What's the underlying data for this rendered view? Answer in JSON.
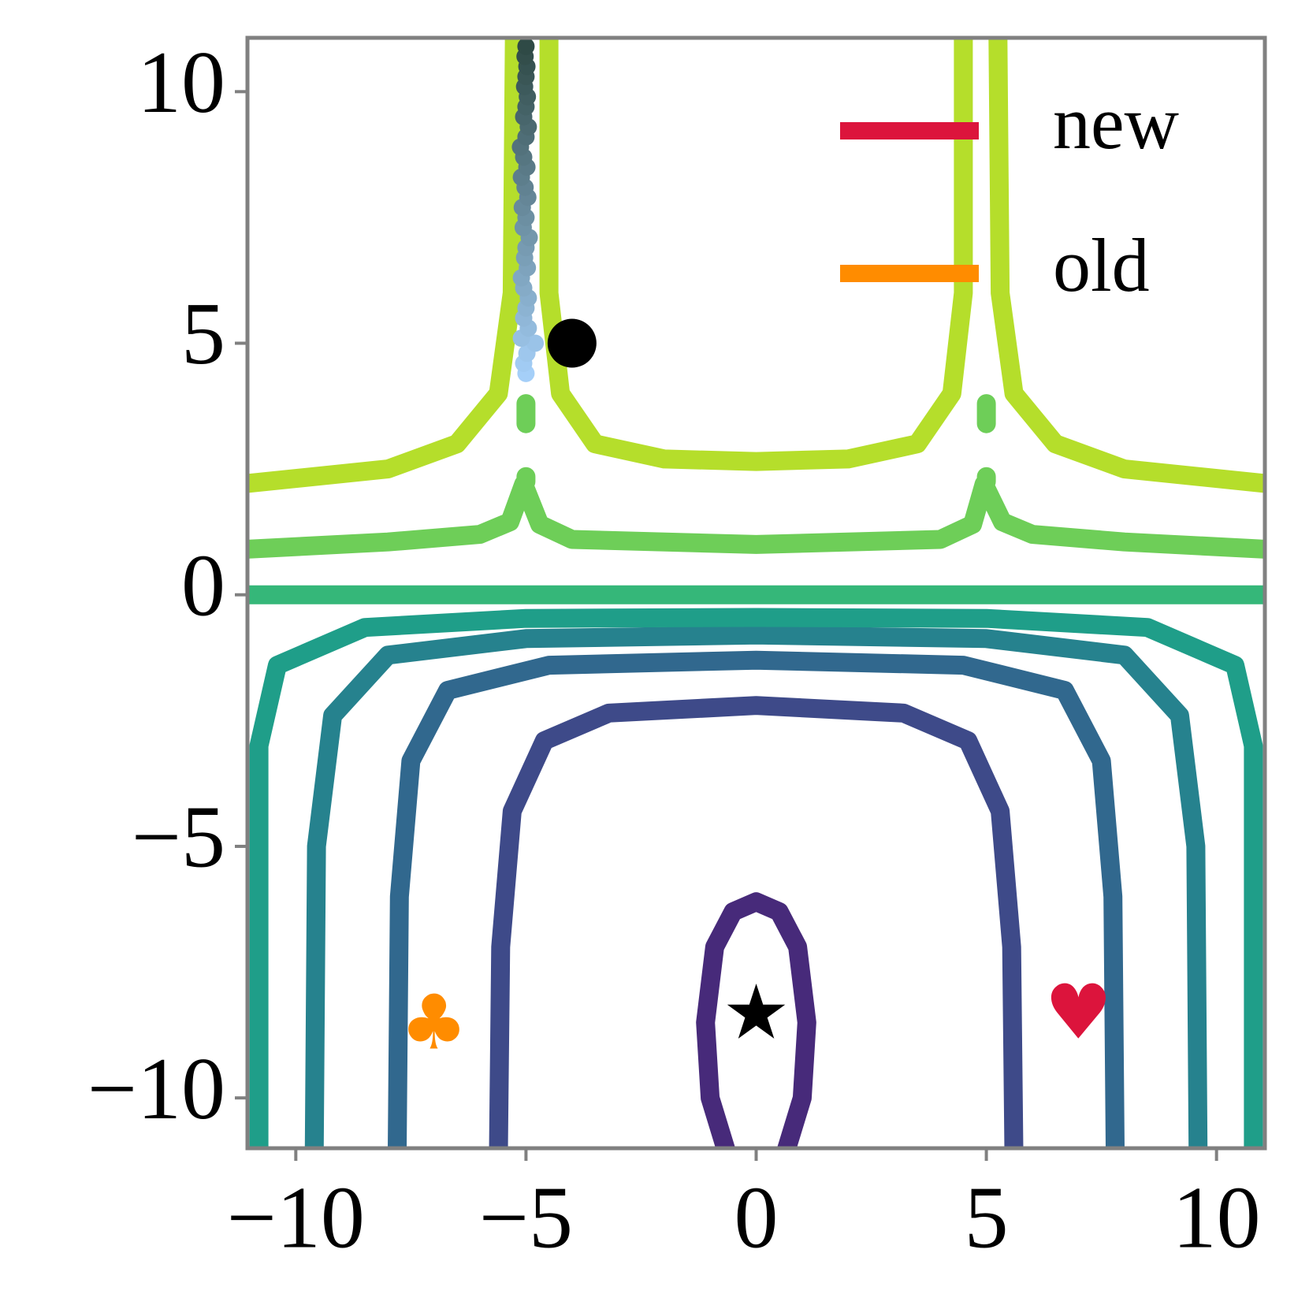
{
  "chart_data": {
    "type": "contour",
    "xlim": [
      -11.05,
      11.05
    ],
    "ylim": [
      -11,
      11.07
    ],
    "xticks": [
      {
        "value": -10,
        "label": "−10"
      },
      {
        "value": -5,
        "label": "−5"
      },
      0,
      5,
      10
    ],
    "yticks": [
      {
        "value": -10,
        "label": "−10"
      },
      {
        "value": -5,
        "label": "−5"
      },
      0,
      5,
      10
    ],
    "contours": [
      {
        "color": "#472a7a",
        "x": [
          -0.6,
          -1.0,
          -1.1,
          -0.9,
          -0.5,
          0,
          0.5,
          0.9,
          1.1,
          1.0,
          0.6
        ],
        "y": [
          -11.2,
          -10,
          -8.5,
          -7,
          -6.3,
          -6.1,
          -6.3,
          -7,
          -8.5,
          -10,
          -11.2
        ]
      },
      {
        "color": "#3e4a89",
        "x": [
          -5.6,
          -5.55,
          -5.3,
          -4.6,
          -3.2,
          0,
          3.2,
          4.6,
          5.3,
          5.55,
          5.6
        ],
        "y": [
          -11.2,
          -7,
          -4.3,
          -2.9,
          -2.35,
          -2.2,
          -2.35,
          -2.9,
          -4.3,
          -7,
          -11.2
        ]
      },
      {
        "color": "#31688e",
        "x": [
          -7.8,
          -7.75,
          -7.5,
          -6.7,
          -4.5,
          0,
          4.5,
          6.7,
          7.5,
          7.75,
          7.8
        ],
        "y": [
          -11.2,
          -6,
          -3.3,
          -1.9,
          -1.4,
          -1.3,
          -1.4,
          -1.9,
          -3.3,
          -6,
          -11.2
        ]
      },
      {
        "color": "#26828e",
        "x": [
          -9.6,
          -9.55,
          -9.2,
          -8,
          -5,
          0,
          5,
          8,
          9.2,
          9.55,
          9.6
        ],
        "y": [
          -11.2,
          -5,
          -2.4,
          -1.2,
          -0.87,
          -0.8,
          -0.87,
          -1.2,
          -2.4,
          -5,
          -11.2
        ]
      },
      {
        "color": "#1f9e89",
        "x": [
          -10.8,
          -10.8,
          -10.4,
          -8.5,
          -5,
          0,
          5,
          8.5,
          10.4,
          10.8,
          10.8
        ],
        "y": [
          -11.2,
          -3,
          -1.4,
          -0.65,
          -0.47,
          -0.45,
          -0.47,
          -0.65,
          -1.4,
          -3,
          -11.2
        ]
      },
      {
        "color": "#35b779",
        "x": [
          -11.2,
          11.2
        ],
        "y": [
          0,
          0
        ]
      },
      {
        "color": "#6ece58",
        "x": [
          -11.2,
          -8,
          -6,
          -5.35,
          -5.05,
          -4.7,
          -4,
          0,
          4,
          4.7,
          4.95,
          5.35,
          6,
          8,
          11.2,
          null,
          -5,
          -5,
          null,
          5,
          5,
          null,
          -5,
          -5,
          null,
          5,
          5
        ],
        "y": [
          0.9,
          1.05,
          1.2,
          1.45,
          2.2,
          1.4,
          1.1,
          1.0,
          1.1,
          1.4,
          2.2,
          1.45,
          1.2,
          1.05,
          0.9,
          null,
          2.25,
          2.35,
          null,
          2.25,
          2.35,
          null,
          3.4,
          3.8,
          null,
          3.4,
          3.8
        ]
      },
      {
        "color": "#b5de2b",
        "x": [
          -11.2,
          -8,
          -6.5,
          -5.6,
          -5.3,
          -5.25,
          null,
          -4.5,
          -4.5,
          -4.25,
          -3.5,
          -2,
          0,
          2,
          3.5,
          4.25,
          4.5,
          4.5,
          null,
          5.25,
          5.3,
          5.6,
          6.5,
          8,
          11.2
        ],
        "y": [
          2.2,
          2.5,
          3.0,
          4.0,
          6,
          11.3,
          null,
          11.3,
          6,
          4,
          3.0,
          2.7,
          2.65,
          2.7,
          3.0,
          4,
          6,
          11.3,
          null,
          11.3,
          6,
          4.0,
          3.0,
          2.5,
          2.2
        ]
      }
    ],
    "trajectory": {
      "colormap": [
        "#a5cff8",
        "#2f4a46"
      ],
      "x": [
        -5.0,
        -5.05,
        -4.98,
        -4.8,
        -5.1,
        -4.95,
        -5.05,
        -5.0,
        -4.95,
        -5.05,
        -5.1,
        -4.97,
        -5.03,
        -5.0,
        -4.93,
        -5.06,
        -5.0,
        -5.08,
        -4.96,
        -5.02,
        -5.1,
        -4.98,
        -5.05,
        -5.12,
        -5.0,
        -4.95,
        -5.05,
        -5.0,
        -4.97,
        -5.03,
        -5.0,
        -4.98,
        -5.02,
        -5.0
      ],
      "y": [
        4.4,
        4.6,
        4.8,
        5.0,
        5.1,
        5.3,
        5.5,
        5.7,
        5.9,
        6.1,
        6.3,
        6.5,
        6.7,
        6.9,
        7.1,
        7.3,
        7.5,
        7.7,
        7.9,
        8.1,
        8.3,
        8.5,
        8.7,
        8.9,
        9.1,
        9.3,
        9.5,
        9.7,
        9.9,
        10.1,
        10.3,
        10.5,
        10.7,
        10.9
      ]
    },
    "markers": [
      {
        "symbol": "circle",
        "color": "#000000",
        "x": -4,
        "y": 5
      },
      {
        "symbol": "star",
        "color": "#000000",
        "x": 0,
        "y": -8.3
      },
      {
        "symbol": "club",
        "color": "#ff8c00",
        "x": -7,
        "y": -8.5
      },
      {
        "symbol": "heart",
        "color": "#dc143c",
        "x": 7,
        "y": -8.3
      }
    ],
    "legend": {
      "corner": "upper right",
      "entries": [
        {
          "name": "new",
          "color": "#dc143c"
        },
        {
          "name": "old",
          "color": "#ff8c00"
        }
      ]
    }
  }
}
